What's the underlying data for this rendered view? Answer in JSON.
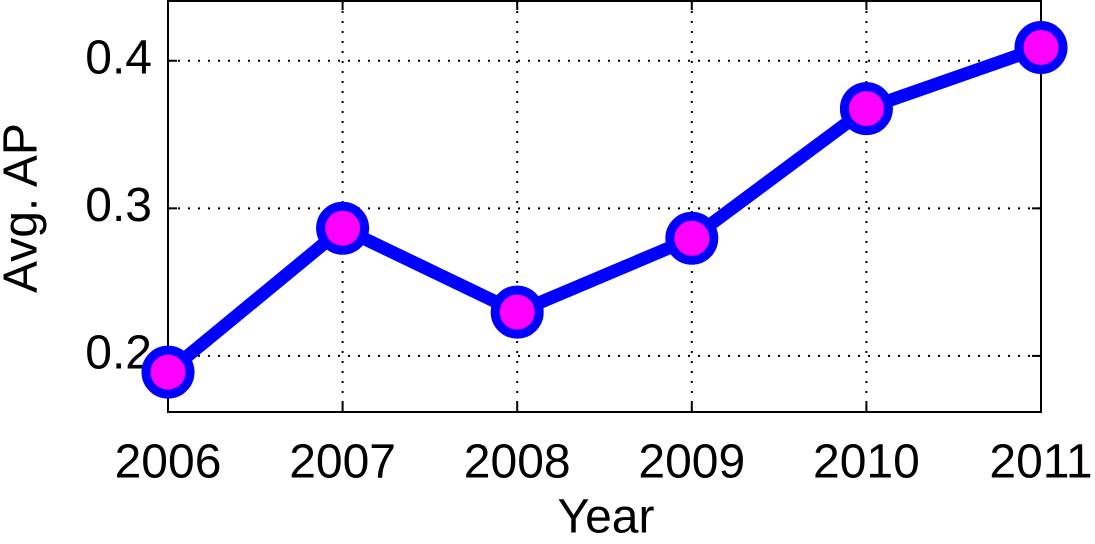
{
  "chart_data": {
    "type": "line",
    "x_label": "Year",
    "y_label": "Avg. AP",
    "x": [
      2006,
      2007,
      2008,
      2009,
      2010,
      2011
    ],
    "series": [
      {
        "color": "#0000ff",
        "marker_color": "#ff00ff",
        "values": [
          0.189,
          0.2865,
          0.2297,
          0.2797,
          0.3676,
          0.409
        ]
      }
    ],
    "xlim": [
      2006,
      2011
    ],
    "xticks": [
      2006,
      2007,
      2008,
      2009,
      2010,
      2011
    ],
    "ylim": [
      0.162,
      0.4405
    ],
    "yticks": [
      0.2,
      0.3,
      0.4
    ],
    "grid": true
  }
}
